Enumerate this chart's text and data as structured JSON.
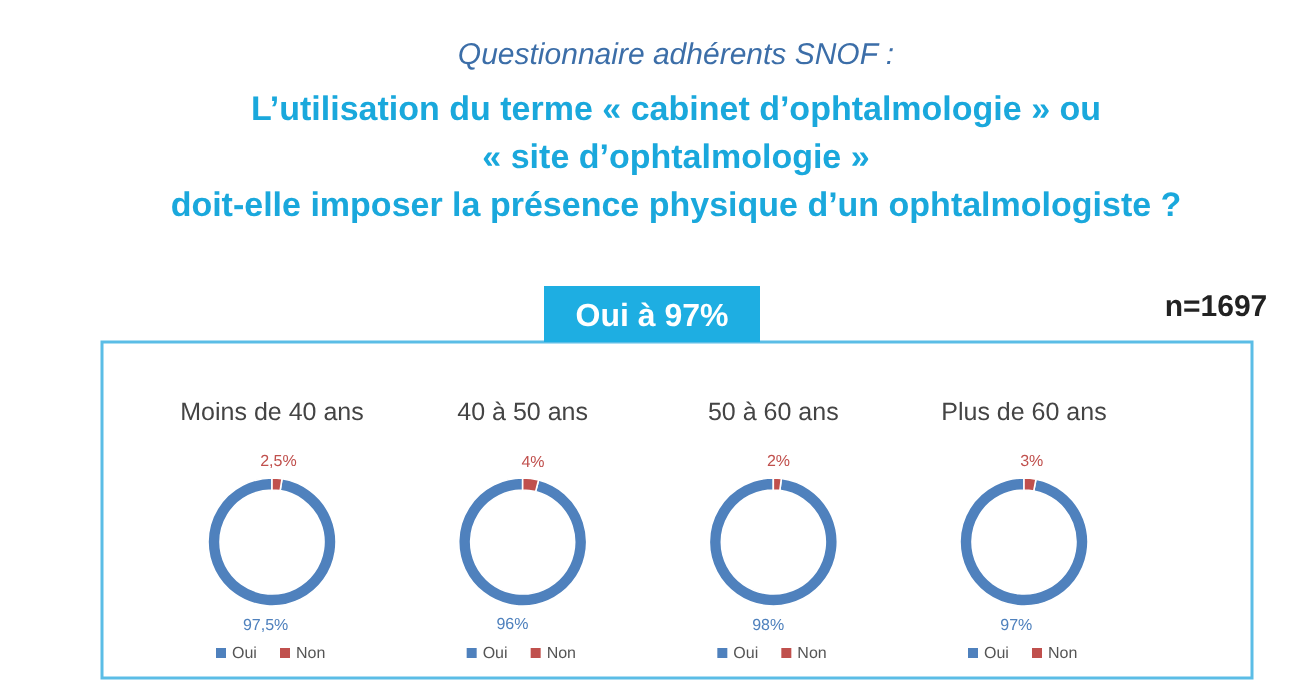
{
  "chart_data": [
    {
      "type": "other",
      "subtitle": "Questionnaire adhérents SNOF :",
      "title": "L’utilisation du terme « cabinet d’ophtalmologie » ou\n« site d’ophtalmologie »\ndoit-elle imposer la présence physique d’un ophtalmologiste ?",
      "annotations": [
        "Oui à 97%",
        "n=1697"
      ]
    },
    {
      "type": "donut",
      "title": "Moins de 40 ans",
      "categories": [
        "Oui",
        "Non"
      ],
      "values": [
        97.5,
        2.5
      ],
      "colors": [
        "#4f81bd",
        "#c0504d"
      ],
      "value_labels": [
        "97,5%",
        "2,5%"
      ],
      "legend": "bottom"
    },
    {
      "type": "donut",
      "title": "40 à 50 ans",
      "categories": [
        "Oui",
        "Non"
      ],
      "values": [
        96,
        4
      ],
      "colors": [
        "#4f81bd",
        "#c0504d"
      ],
      "value_labels": [
        "96%",
        "4%"
      ],
      "legend": "bottom"
    },
    {
      "type": "donut",
      "title": "50 à 60 ans",
      "categories": [
        "Oui",
        "Non"
      ],
      "values": [
        98,
        2
      ],
      "colors": [
        "#4f81bd",
        "#c0504d"
      ],
      "value_labels": [
        "98%",
        "2%"
      ],
      "legend": "bottom"
    },
    {
      "type": "donut",
      "title": "Plus de 60 ans",
      "categories": [
        "Oui",
        "Non"
      ],
      "values": [
        97,
        3
      ],
      "colors": [
        "#4f81bd",
        "#c0504d"
      ],
      "value_labels": [
        "97%",
        "3%"
      ],
      "legend": "bottom"
    }
  ]
}
